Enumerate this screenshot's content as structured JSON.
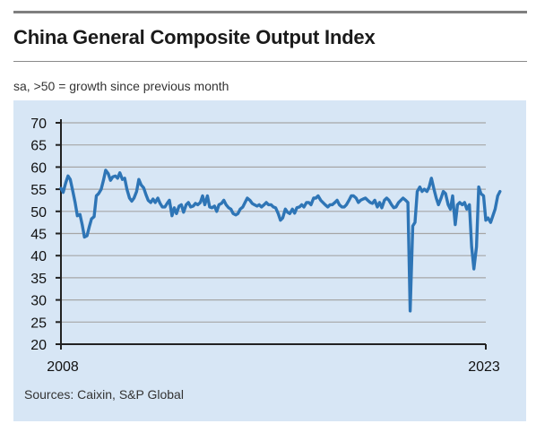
{
  "title": "China General Composite Output Index",
  "subtitle": "sa, >50 = growth since previous month",
  "source": "Sources: Caixin, S&P Global",
  "colors": {
    "line": "#2e75b6",
    "panel": "#d7e6f5",
    "grid": "#a6a6a6",
    "axis": "#222222"
  },
  "chart_data": {
    "type": "line",
    "title": "China General Composite Output Index",
    "subtitle": "sa, >50 = growth since previous month",
    "xlabel": "",
    "ylabel": "",
    "ylim": [
      20,
      70
    ],
    "yticks": [
      20,
      25,
      30,
      35,
      40,
      45,
      50,
      55,
      60,
      65,
      70
    ],
    "xlim": [
      2008,
      2023
    ],
    "xtick_labels": [
      "2008",
      "2023"
    ],
    "grid": "horizontal",
    "series": [
      {
        "name": "",
        "points": [
          [
            2008.0,
            55.2
          ],
          [
            2008.08,
            54.3
          ],
          [
            2008.17,
            56.5
          ],
          [
            2008.25,
            58.0
          ],
          [
            2008.33,
            57.2
          ],
          [
            2008.42,
            54.5
          ],
          [
            2008.5,
            52.0
          ],
          [
            2008.58,
            49.0
          ],
          [
            2008.67,
            49.3
          ],
          [
            2008.75,
            47.0
          ],
          [
            2008.83,
            44.2
          ],
          [
            2008.92,
            44.5
          ],
          [
            2009.0,
            46.5
          ],
          [
            2009.08,
            48.3
          ],
          [
            2009.17,
            48.8
          ],
          [
            2009.25,
            53.5
          ],
          [
            2009.33,
            54.0
          ],
          [
            2009.42,
            55.0
          ],
          [
            2009.5,
            57.0
          ],
          [
            2009.58,
            59.3
          ],
          [
            2009.67,
            58.5
          ],
          [
            2009.75,
            57.0
          ],
          [
            2009.83,
            57.8
          ],
          [
            2009.92,
            58.0
          ],
          [
            2010.0,
            57.5
          ],
          [
            2010.08,
            58.7
          ],
          [
            2010.17,
            57.2
          ],
          [
            2010.25,
            57.5
          ],
          [
            2010.33,
            55.0
          ],
          [
            2010.42,
            53.0
          ],
          [
            2010.5,
            52.3
          ],
          [
            2010.58,
            53.0
          ],
          [
            2010.67,
            54.5
          ],
          [
            2010.75,
            57.2
          ],
          [
            2010.83,
            56.0
          ],
          [
            2010.92,
            55.3
          ],
          [
            2011.0,
            53.8
          ],
          [
            2011.08,
            52.5
          ],
          [
            2011.17,
            52.0
          ],
          [
            2011.25,
            52.8
          ],
          [
            2011.33,
            52.0
          ],
          [
            2011.42,
            53.0
          ],
          [
            2011.5,
            51.8
          ],
          [
            2011.58,
            51.0
          ],
          [
            2011.67,
            51.0
          ],
          [
            2011.75,
            51.8
          ],
          [
            2011.83,
            52.5
          ],
          [
            2011.92,
            49.0
          ],
          [
            2012.0,
            50.8
          ],
          [
            2012.08,
            49.5
          ],
          [
            2012.17,
            51.2
          ],
          [
            2012.25,
            51.5
          ],
          [
            2012.33,
            49.8
          ],
          [
            2012.42,
            51.5
          ],
          [
            2012.5,
            52.0
          ],
          [
            2012.58,
            51.0
          ],
          [
            2012.67,
            51.2
          ],
          [
            2012.75,
            51.8
          ],
          [
            2012.83,
            51.5
          ],
          [
            2012.92,
            52.0
          ],
          [
            2013.0,
            53.5
          ],
          [
            2013.08,
            51.5
          ],
          [
            2013.17,
            53.5
          ],
          [
            2013.25,
            51.0
          ],
          [
            2013.33,
            50.8
          ],
          [
            2013.42,
            51.2
          ],
          [
            2013.5,
            50.0
          ],
          [
            2013.58,
            51.5
          ],
          [
            2013.67,
            51.8
          ],
          [
            2013.75,
            52.5
          ],
          [
            2013.83,
            51.5
          ],
          [
            2013.92,
            50.8
          ],
          [
            2014.0,
            50.5
          ],
          [
            2014.08,
            49.5
          ],
          [
            2014.17,
            49.2
          ],
          [
            2014.25,
            49.5
          ],
          [
            2014.33,
            50.5
          ],
          [
            2014.42,
            51.0
          ],
          [
            2014.5,
            52.0
          ],
          [
            2014.58,
            53.0
          ],
          [
            2014.67,
            52.5
          ],
          [
            2014.75,
            51.8
          ],
          [
            2014.83,
            51.5
          ],
          [
            2014.92,
            51.2
          ],
          [
            2015.0,
            51.5
          ],
          [
            2015.08,
            51.0
          ],
          [
            2015.17,
            51.5
          ],
          [
            2015.25,
            52.0
          ],
          [
            2015.33,
            51.5
          ],
          [
            2015.42,
            51.5
          ],
          [
            2015.5,
            51.0
          ],
          [
            2015.58,
            50.8
          ],
          [
            2015.67,
            49.5
          ],
          [
            2015.75,
            48.0
          ],
          [
            2015.83,
            48.5
          ],
          [
            2015.92,
            50.5
          ],
          [
            2016.0,
            49.8
          ],
          [
            2016.08,
            49.5
          ],
          [
            2016.17,
            50.5
          ],
          [
            2016.25,
            49.6
          ],
          [
            2016.33,
            50.8
          ],
          [
            2016.42,
            51.0
          ],
          [
            2016.5,
            51.5
          ],
          [
            2016.58,
            51.0
          ],
          [
            2016.67,
            52.0
          ],
          [
            2016.75,
            52.0
          ],
          [
            2016.83,
            51.5
          ],
          [
            2016.92,
            53.0
          ],
          [
            2017.0,
            53.0
          ],
          [
            2017.08,
            53.5
          ],
          [
            2017.17,
            52.5
          ],
          [
            2017.25,
            52.0
          ],
          [
            2017.33,
            51.5
          ],
          [
            2017.42,
            51.0
          ],
          [
            2017.5,
            51.5
          ],
          [
            2017.58,
            51.5
          ],
          [
            2017.67,
            52.0
          ],
          [
            2017.75,
            52.5
          ],
          [
            2017.83,
            51.5
          ],
          [
            2017.92,
            51.0
          ],
          [
            2018.0,
            51.0
          ],
          [
            2018.08,
            51.5
          ],
          [
            2018.17,
            52.5
          ],
          [
            2018.25,
            53.5
          ],
          [
            2018.33,
            53.5
          ],
          [
            2018.42,
            53.0
          ],
          [
            2018.5,
            52.0
          ],
          [
            2018.58,
            52.5
          ],
          [
            2018.67,
            52.8
          ],
          [
            2018.75,
            53.0
          ],
          [
            2018.83,
            52.5
          ],
          [
            2018.92,
            52.0
          ],
          [
            2019.0,
            51.8
          ],
          [
            2019.08,
            52.5
          ],
          [
            2019.17,
            51.0
          ],
          [
            2019.25,
            52.0
          ],
          [
            2019.33,
            50.8
          ],
          [
            2019.42,
            52.5
          ],
          [
            2019.5,
            53.0
          ],
          [
            2019.58,
            52.5
          ],
          [
            2019.67,
            51.5
          ],
          [
            2019.75,
            50.8
          ],
          [
            2019.83,
            51.0
          ],
          [
            2019.92,
            52.0
          ],
          [
            2020.0,
            52.5
          ],
          [
            2020.08,
            53.0
          ],
          [
            2020.17,
            52.5
          ],
          [
            2020.25,
            52.0
          ],
          [
            2020.33,
            27.5
          ],
          [
            2020.42,
            46.7
          ],
          [
            2020.5,
            47.5
          ],
          [
            2020.58,
            54.5
          ],
          [
            2020.67,
            55.5
          ],
          [
            2020.75,
            54.5
          ],
          [
            2020.83,
            55.0
          ],
          [
            2020.92,
            54.5
          ],
          [
            2021.0,
            55.5
          ],
          [
            2021.08,
            57.5
          ],
          [
            2021.17,
            55.0
          ],
          [
            2021.25,
            53.0
          ],
          [
            2021.33,
            51.5
          ],
          [
            2021.42,
            53.0
          ],
          [
            2021.5,
            54.5
          ],
          [
            2021.58,
            54.0
          ],
          [
            2021.67,
            51.5
          ],
          [
            2021.75,
            50.5
          ],
          [
            2021.83,
            53.5
          ],
          [
            2021.92,
            47.0
          ],
          [
            2022.0,
            51.5
          ],
          [
            2022.08,
            52.0
          ],
          [
            2022.17,
            51.5
          ],
          [
            2022.25,
            52.0
          ],
          [
            2022.33,
            50.5
          ],
          [
            2022.42,
            51.5
          ],
          [
            2022.5,
            42.0
          ],
          [
            2022.58,
            37.0
          ],
          [
            2022.67,
            42.0
          ],
          [
            2022.75,
            55.5
          ],
          [
            2022.83,
            54.0
          ],
          [
            2022.92,
            53.5
          ],
          [
            2023.0,
            48.0
          ],
          [
            2023.08,
            48.5
          ],
          [
            2023.17,
            47.5
          ],
          [
            2023.25,
            49.0
          ],
          [
            2023.33,
            50.5
          ],
          [
            2023.42,
            53.5
          ],
          [
            2023.5,
            54.5
          ]
        ]
      }
    ]
  }
}
